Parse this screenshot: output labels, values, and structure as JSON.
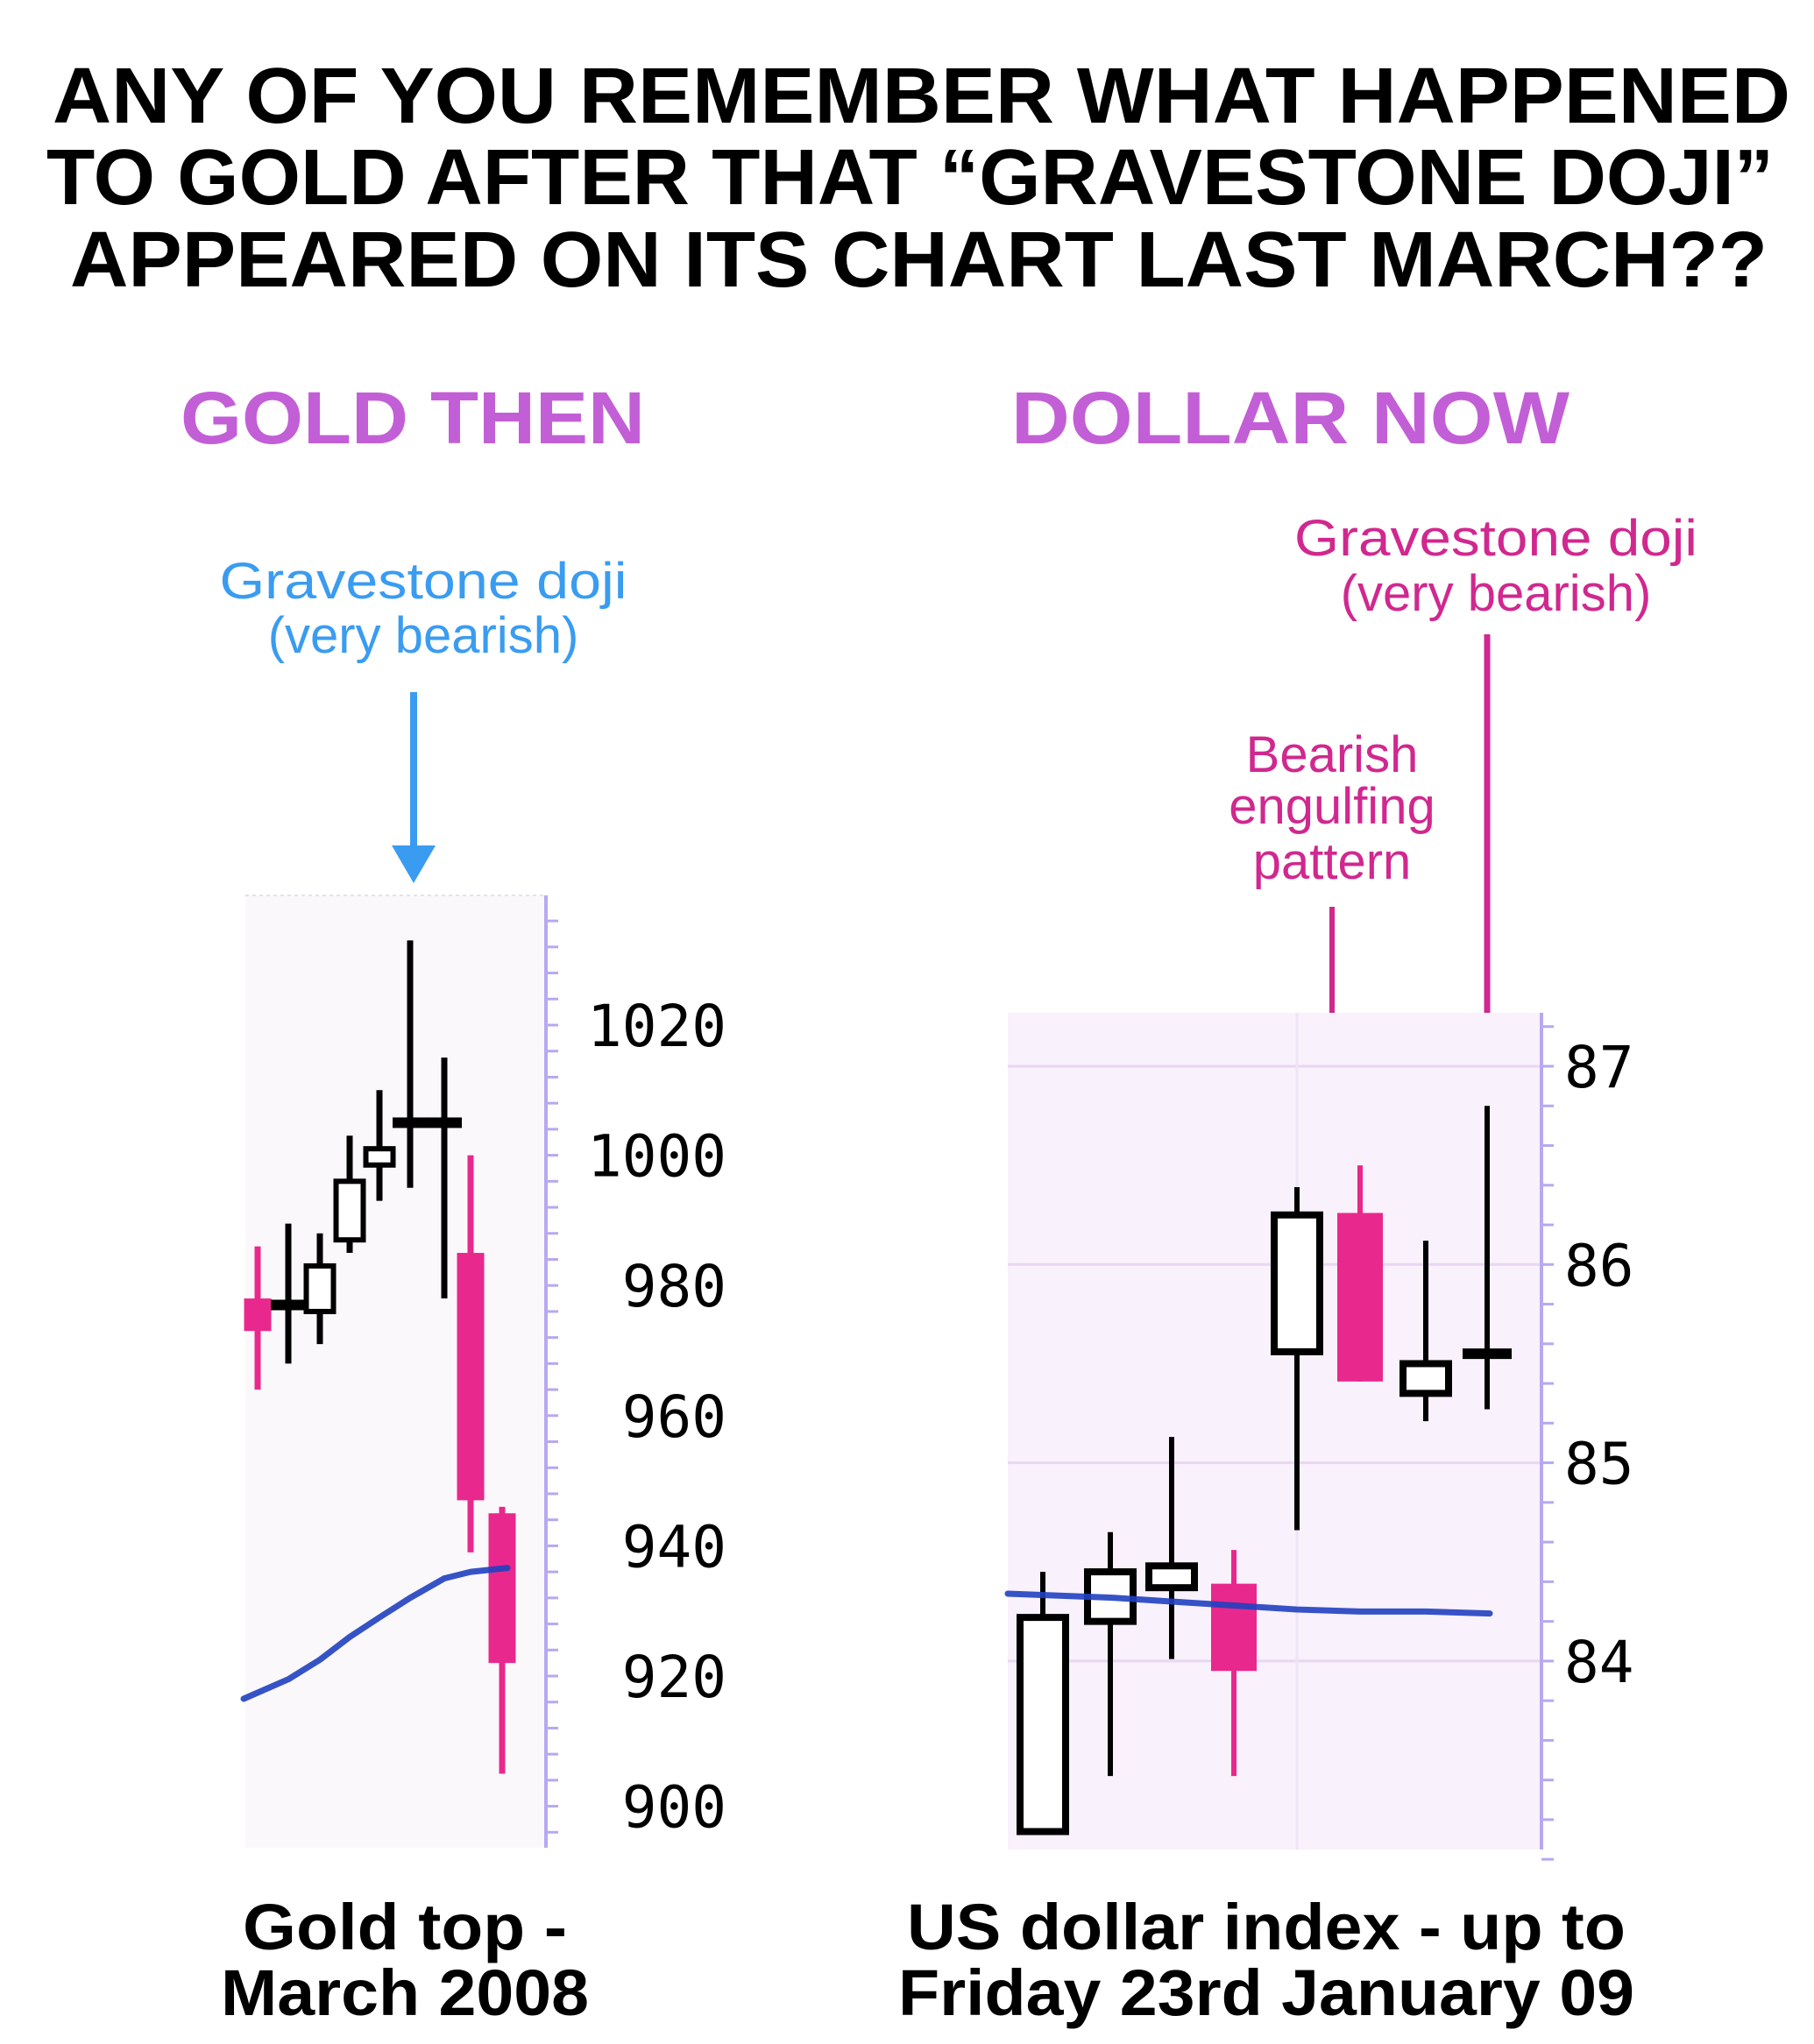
{
  "title_lines": [
    "ANY OF YOU REMEMBER WHAT HAPPENED",
    "TO GOLD AFTER THAT “GRAVESTONE DOJI”",
    "APPEARED ON ITS CHART LAST MARCH??"
  ],
  "colors": {
    "heading": "#c25fd6",
    "bearish_candle": "#e8288c",
    "bullish_candle": "#000000",
    "moving_average": "#2040c0",
    "left_annotation": "#3a9cf0",
    "right_annotation": "#d0288f",
    "axis": "#b8a8f0"
  },
  "panels": {
    "left": {
      "heading": "GOLD THEN",
      "annotation": [
        "Gravestone doji",
        "(very bearish)"
      ],
      "caption": [
        "Gold top -",
        "March 2008"
      ]
    },
    "right": {
      "heading": "DOLLAR NOW",
      "annotation": [
        "Gravestone doji",
        "(very bearish)"
      ],
      "annotation2": [
        "Bearish",
        "engulfing",
        "pattern"
      ],
      "caption": [
        "US dollar index - up to",
        "Friday 23rd January 09"
      ]
    }
  },
  "chart_data": [
    {
      "type": "candlestick",
      "title": "GOLD THEN",
      "xlabel": "Gold top - March 2008",
      "ylim": [
        895,
        1038
      ],
      "yticks": [
        "1020",
        "1000",
        "980",
        "960",
        "940",
        "920",
        "900"
      ],
      "axis_side": "right",
      "grid": false,
      "candles": [
        {
          "open": 978,
          "high": 986,
          "low": 964,
          "close": 973
        },
        {
          "open": 977,
          "high": 989.5,
          "low": 968,
          "close": 977
        },
        {
          "open": 976,
          "high": 988,
          "low": 971,
          "close": 983
        },
        {
          "open": 987,
          "high": 1003,
          "low": 985,
          "close": 996
        },
        {
          "open": 998.5,
          "high": 1010,
          "low": 993,
          "close": 1001
        },
        {
          "open": 1005,
          "high": 1033,
          "low": 995,
          "close": 1005
        },
        {
          "open": 1005,
          "high": 1015,
          "low": 978,
          "close": 1005
        },
        {
          "open": 985,
          "high": 1000,
          "low": 939,
          "close": 947
        },
        {
          "open": 945,
          "high": 946,
          "low": 905,
          "close": 922
        }
      ],
      "moving_average": [
        916.5,
        919.5,
        922.5,
        926,
        929,
        932,
        935,
        936,
        936.6
      ],
      "annotations": [
        {
          "text": "Gravestone doji (very bearish)",
          "candle": 6
        }
      ]
    },
    {
      "type": "candlestick",
      "title": "DOLLAR NOW",
      "xlabel": "US dollar index - up to Friday 23rd January 09",
      "ylim": [
        83.1,
        87.25
      ],
      "yticks": [
        "87",
        "86",
        "85",
        "84"
      ],
      "axis_side": "right",
      "grid": true,
      "candles": [
        {
          "open": 83.14,
          "high": 84.45,
          "low": 83.14,
          "close": 84.22
        },
        {
          "open": 84.2,
          "high": 84.65,
          "low": 83.42,
          "close": 84.45
        },
        {
          "open": 84.37,
          "high": 85.13,
          "low": 84.01,
          "close": 84.48
        },
        {
          "open": 84.39,
          "high": 84.56,
          "low": 83.42,
          "close": 83.95
        },
        {
          "open": 85.56,
          "high": 86.39,
          "low": 84.66,
          "close": 86.25
        },
        {
          "open": 86.26,
          "high": 86.5,
          "low": 85.41,
          "close": 85.41
        },
        {
          "open": 85.35,
          "high": 86.12,
          "low": 85.21,
          "close": 85.5
        },
        {
          "open": 85.55,
          "high": 86.8,
          "low": 85.27,
          "close": 85.55
        }
      ],
      "moving_average": [
        84.34,
        84.32,
        84.3,
        84.28,
        84.26,
        84.25,
        84.25,
        84.24
      ],
      "annotations": [
        {
          "text": "Bearish engulfing pattern",
          "candles": [
            5,
            6
          ]
        },
        {
          "text": "Gravestone doji (very bearish)",
          "candle": 8
        }
      ]
    }
  ]
}
